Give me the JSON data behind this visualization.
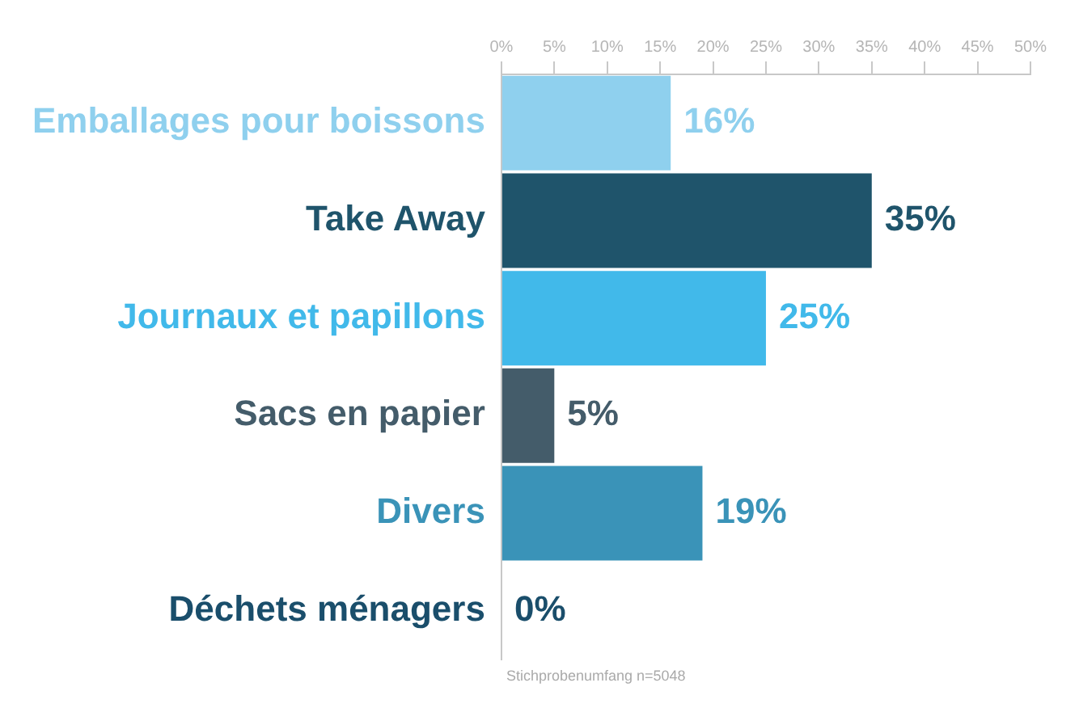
{
  "chart_data": {
    "type": "bar",
    "orientation": "horizontal",
    "categories": [
      "Emballages pour boissons",
      "Take Away",
      "Journaux et papillons",
      "Sacs en papier",
      "Divers",
      "Déchets ménagers"
    ],
    "values": [
      16,
      35,
      25,
      5,
      19,
      0
    ],
    "colors": [
      "#8fd0ee",
      "#1f546b",
      "#41b9ea",
      "#445c6a",
      "#3a93b8",
      "#1a4e6b"
    ],
    "value_labels": [
      "16%",
      "35%",
      "25%",
      "5%",
      "19%",
      "0%"
    ],
    "xlim": [
      0,
      50
    ],
    "xticks": [
      {
        "value": 0,
        "label": "0%"
      },
      {
        "value": 5,
        "label": "5%"
      },
      {
        "value": 10,
        "label": "10%"
      },
      {
        "value": 15,
        "label": "15%"
      },
      {
        "value": 20,
        "label": "20%"
      },
      {
        "value": 25,
        "label": "25%"
      },
      {
        "value": 30,
        "label": "30%"
      },
      {
        "value": 35,
        "label": "35%"
      },
      {
        "value": 40,
        "label": "40%"
      },
      {
        "value": 45,
        "label": "45%"
      },
      {
        "value": 50,
        "label": "50%"
      }
    ],
    "annotations": [
      "Stichprobenumfang n=5048"
    ],
    "grid": false,
    "legend": false
  }
}
